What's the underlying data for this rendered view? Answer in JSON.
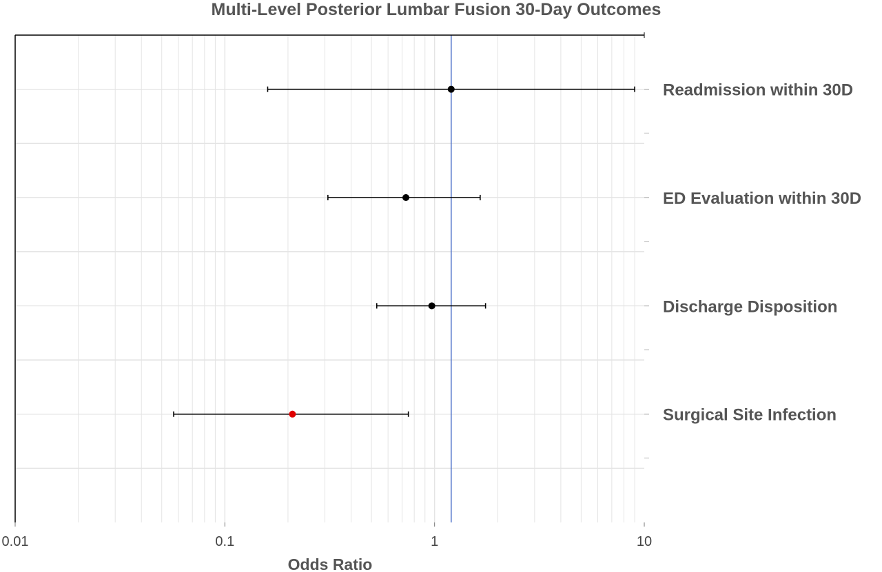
{
  "chart_data": {
    "type": "scatter",
    "subtype": "forest-plot",
    "title": "Multi-Level Posterior Lumbar Fusion 30-Day Outcomes",
    "xlabel": "Odds Ratio",
    "ylabel": "",
    "xscale": "log",
    "xlim": [
      0.01,
      10
    ],
    "x_ticks": [
      0.01,
      0.1,
      1,
      10
    ],
    "x_tick_labels": [
      "0.01",
      "0.1",
      "1",
      "10"
    ],
    "reference_line": 1.2,
    "grid": true,
    "label_position": "right",
    "colors": {
      "reference": "#4a6fc8",
      "significant": "#e00000",
      "default": "#000000",
      "grid": "#e4e4e4"
    },
    "rows": [
      {
        "label": "Readmission within 30D",
        "or": 1.2,
        "lower": 0.16,
        "upper": 9.0,
        "significant": false
      },
      {
        "label": "ED Evaluation within 30D",
        "or": 0.73,
        "lower": 0.31,
        "upper": 1.65,
        "significant": false
      },
      {
        "label": "Discharge Disposition",
        "or": 0.97,
        "lower": 0.53,
        "upper": 1.75,
        "significant": false
      },
      {
        "label": "Surgical Site Infection",
        "or": 0.21,
        "lower": 0.057,
        "upper": 0.75,
        "significant": true
      }
    ]
  }
}
